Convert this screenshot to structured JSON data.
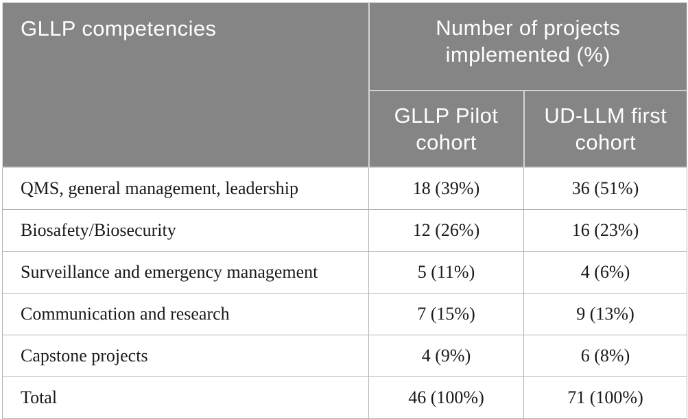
{
  "table": {
    "header": {
      "row_header": "GLLP competencies",
      "group_header": "Number of projects implemented (%)",
      "sub_headers": [
        "GLLP Pilot cohort",
        "UD-LLM first cohort"
      ]
    },
    "rows": [
      {
        "label": "QMS, general management, leadership",
        "pilot": "18 (39%)",
        "udllm": "36 (51%)"
      },
      {
        "label": "Biosafety/Biosecurity",
        "pilot": "12 (26%)",
        "udllm": "16 (23%)"
      },
      {
        "label": "Surveillance and emergency management",
        "pilot": "5 (11%)",
        "udllm": "4 (6%)"
      },
      {
        "label": "Communication and research",
        "pilot": "7 (15%)",
        "udllm": "9 (13%)"
      },
      {
        "label": "Capstone projects",
        "pilot": "4 (9%)",
        "udllm": "6 (8%)"
      },
      {
        "label": "Total",
        "pilot": "46 (100%)",
        "udllm": "71 (100%)"
      }
    ],
    "colors": {
      "header_background": "#858585",
      "header_text": "#ffffff",
      "header_divider": "#d4d4d4",
      "body_border": "#b4b4b4",
      "body_text": "#1a1a1a",
      "page_background": "#ffffff"
    }
  },
  "chart_data": {
    "type": "table",
    "title": "Number of projects implemented (%) by GLLP competencies",
    "columns": [
      "GLLP competencies",
      "GLLP Pilot cohort",
      "UD-LLM first cohort"
    ],
    "rows": [
      [
        "QMS, general management, leadership",
        "18 (39%)",
        "36 (51%)"
      ],
      [
        "Biosafety/Biosecurity",
        "12 (26%)",
        "16 (23%)"
      ],
      [
        "Surveillance and emergency management",
        "5 (11%)",
        "4 (6%)"
      ],
      [
        "Communication and research",
        "7 (15%)",
        "9 (13%)"
      ],
      [
        "Capstone projects",
        "4 (9%)",
        "6 (8%)"
      ],
      [
        "Total",
        "46 (100%)",
        "71 (100%)"
      ]
    ],
    "series": [
      {
        "name": "GLLP Pilot cohort",
        "values": [
          18,
          12,
          5,
          7,
          4
        ],
        "percent": [
          39,
          26,
          11,
          15,
          9
        ],
        "total": 46
      },
      {
        "name": "UD-LLM first cohort",
        "values": [
          36,
          16,
          4,
          9,
          6
        ],
        "percent": [
          51,
          23,
          6,
          13,
          8
        ],
        "total": 71
      }
    ]
  }
}
